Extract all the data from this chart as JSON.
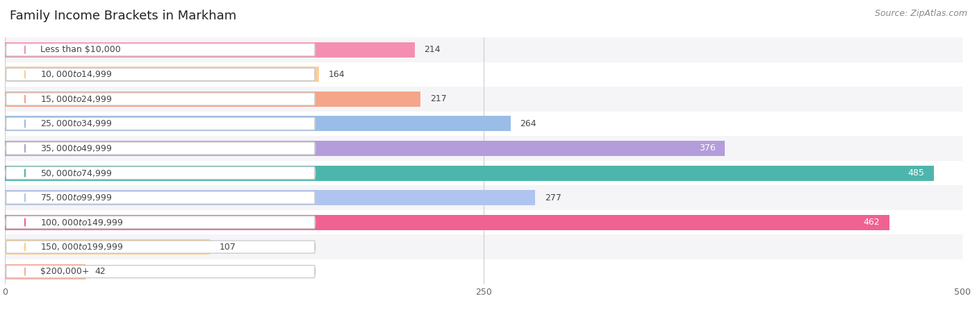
{
  "title": "Family Income Brackets in Markham",
  "source": "Source: ZipAtlas.com",
  "categories": [
    "Less than $10,000",
    "$10,000 to $14,999",
    "$15,000 to $24,999",
    "$25,000 to $34,999",
    "$35,000 to $49,999",
    "$50,000 to $74,999",
    "$75,000 to $99,999",
    "$100,000 to $149,999",
    "$150,000 to $199,999",
    "$200,000+"
  ],
  "values": [
    214,
    164,
    217,
    264,
    376,
    485,
    277,
    462,
    107,
    42
  ],
  "bar_colors": [
    "#F48FB1",
    "#FFCC99",
    "#F4A58A",
    "#9ABDE8",
    "#B39DDB",
    "#4DB6AC",
    "#B0C4F0",
    "#F06292",
    "#FFCC80",
    "#FFAB9B"
  ],
  "label_inside": [
    false,
    false,
    false,
    false,
    true,
    true,
    false,
    true,
    false,
    false
  ],
  "xlim": [
    0,
    500
  ],
  "xticks": [
    0,
    250,
    500
  ],
  "bar_height": 0.62,
  "row_bg_even": "#F5F5F8",
  "row_bg_odd": "#FFFFFF",
  "background_color": "#FFFFFF",
  "title_fontsize": 13,
  "source_fontsize": 9,
  "value_fontsize": 9,
  "cat_fontsize": 9,
  "pill_color": "#FFFFFF",
  "pill_edge_color": "#CCCCCC",
  "grid_color": "#CCCCCC",
  "text_color_dark": "#444444",
  "text_color_white": "#FFFFFF"
}
